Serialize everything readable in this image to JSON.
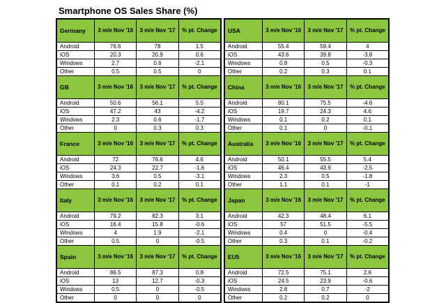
{
  "title": "Smartphone OS Sales Share (%)",
  "left_tables": [
    {
      "country": "Germany",
      "headers": [
        "3 m/e Nov '16",
        "3 m/e Nov '17",
        "% pt. Change"
      ],
      "rows": [
        {
          "os": "Android",
          "v16": "76.6",
          "v17": "78",
          "chg": "1.5"
        },
        {
          "os": "iOS",
          "v16": "20.3",
          "v17": "20.9",
          "chg": "0.6"
        },
        {
          "os": "Windows",
          "v16": "2.7",
          "v17": "0.6",
          "chg": "-2.1"
        },
        {
          "os": "Other",
          "v16": "0.5",
          "v17": "0.5",
          "chg": "0"
        }
      ]
    },
    {
      "country": "GB",
      "headers": [
        "3 m/e Nov '16",
        "3 m/e Nov '17",
        "% pt. Change"
      ],
      "rows": [
        {
          "os": "Android",
          "v16": "50.6",
          "v17": "56.1",
          "chg": "5.5"
        },
        {
          "os": "iOS",
          "v16": "47.2",
          "v17": "43",
          "chg": "-4.2"
        },
        {
          "os": "Windows",
          "v16": "2.3",
          "v17": "0.6",
          "chg": "-1.7"
        },
        {
          "os": "Other",
          "v16": "0",
          "v17": "0.3",
          "chg": "0.3"
        }
      ]
    },
    {
      "country": "France",
      "headers": [
        "3 m/e Nov '16",
        "3 m/e Nov '17",
        "% pt. Change"
      ],
      "rows": [
        {
          "os": "Android",
          "v16": "72",
          "v17": "76.6",
          "chg": "4.6"
        },
        {
          "os": "iOS",
          "v16": "24.3",
          "v17": "22.7",
          "chg": "-1.6"
        },
        {
          "os": "Windows",
          "v16": "3.6",
          "v17": "0.5",
          "chg": "-3.1"
        },
        {
          "os": "Other",
          "v16": "0.1",
          "v17": "0.2",
          "chg": "0.1"
        }
      ]
    },
    {
      "country": "Italy",
      "headers": [
        "3 m/e Nov '16",
        "3 m/e Nov '17",
        "% pt. Change"
      ],
      "rows": [
        {
          "os": "Android",
          "v16": "79.2",
          "v17": "82.3",
          "chg": "3.1"
        },
        {
          "os": "iOS",
          "v16": "16.4",
          "v17": "15.8",
          "chg": "-0.6"
        },
        {
          "os": "Windows",
          "v16": "4",
          "v17": "1.9",
          "chg": "-2.1"
        },
        {
          "os": "Other",
          "v16": "0.5",
          "v17": "0",
          "chg": "-0.5"
        }
      ]
    },
    {
      "country": "Spain",
      "headers": [
        "3 m/e Nov '16",
        "3 m/e Nov '17",
        "% pt. Change"
      ],
      "rows": [
        {
          "os": "Android",
          "v16": "86.5",
          "v17": "87.3",
          "chg": "0.8"
        },
        {
          "os": "iOS",
          "v16": "13",
          "v17": "12.7",
          "chg": "-0.3"
        },
        {
          "os": "Windows",
          "v16": "0.5",
          "v17": "0",
          "chg": "-0.5"
        },
        {
          "os": "Other",
          "v16": "0",
          "v17": "0",
          "chg": "0"
        }
      ]
    }
  ],
  "right_tables": [
    {
      "country": "USA",
      "headers": [
        "3 m/e Nov '16",
        "3 m/e Nov '17",
        "% pt. Change"
      ],
      "rows": [
        {
          "os": "Android",
          "v16": "55.4",
          "v17": "59.4",
          "chg": "4"
        },
        {
          "os": "iOS",
          "v16": "43.6",
          "v17": "39.8",
          "chg": "-3.8"
        },
        {
          "os": "Windows",
          "v16": "0.8",
          "v17": "0.5",
          "chg": "-0.3"
        },
        {
          "os": "Other",
          "v16": "0.2",
          "v17": "0.3",
          "chg": "0.1"
        }
      ]
    },
    {
      "country": "China",
      "headers": [
        "3 m/e Nov '16",
        "3 m/e Nov '17",
        "% pt. Change"
      ],
      "rows": [
        {
          "os": "Android",
          "v16": "80.1",
          "v17": "75.5",
          "chg": "-4.6"
        },
        {
          "os": "iOS",
          "v16": "19.7",
          "v17": "24.3",
          "chg": "4.6"
        },
        {
          "os": "Windows",
          "v16": "0.1",
          "v17": "0.2",
          "chg": "0.1"
        },
        {
          "os": "Other",
          "v16": "0.1",
          "v17": "0",
          "chg": "-0.1"
        }
      ]
    },
    {
      "country": "Australia",
      "headers": [
        "3 m/e Nov '16",
        "3 m/e Nov '17",
        "% pt. Change"
      ],
      "rows": [
        {
          "os": "Android",
          "v16": "50.1",
          "v17": "55.5",
          "chg": "5.4"
        },
        {
          "os": "iOS",
          "v16": "46.4",
          "v17": "43.9",
          "chg": "-2.5"
        },
        {
          "os": "Windows",
          "v16": "2.3",
          "v17": "0.5",
          "chg": "-1.8"
        },
        {
          "os": "Other",
          "v16": "1.1",
          "v17": "0.1",
          "chg": "-1"
        }
      ]
    },
    {
      "country": "Japan",
      "headers": [
        "3 m/e Nov '16",
        "3 m/e Nov '17",
        "% pt. Change"
      ],
      "rows": [
        {
          "os": "Android",
          "v16": "42.3",
          "v17": "48.4",
          "chg": "6.1"
        },
        {
          "os": "iOS",
          "v16": "57",
          "v17": "51.5",
          "chg": "-5.5"
        },
        {
          "os": "Windows",
          "v16": "0.4",
          "v17": "0",
          "chg": "-0.4"
        },
        {
          "os": "Other",
          "v16": "0.3",
          "v17": "0.1",
          "chg": "-0.2"
        }
      ]
    },
    {
      "country": "EU5",
      "headers": [
        "3 m/e Nov '16",
        "3 m/e Nov '17",
        "% pt. Change"
      ],
      "rows": [
        {
          "os": "Android",
          "v16": "72.5",
          "v17": "75.1",
          "chg": "2.6"
        },
        {
          "os": "iOS",
          "v16": "24.5",
          "v17": "23.9",
          "chg": "-0.6"
        },
        {
          "os": "Windows",
          "v16": "2.8",
          "v17": "0.7",
          "chg": "-2"
        },
        {
          "os": "Other",
          "v16": "0.2",
          "v17": "0.2",
          "chg": "0"
        }
      ]
    }
  ]
}
